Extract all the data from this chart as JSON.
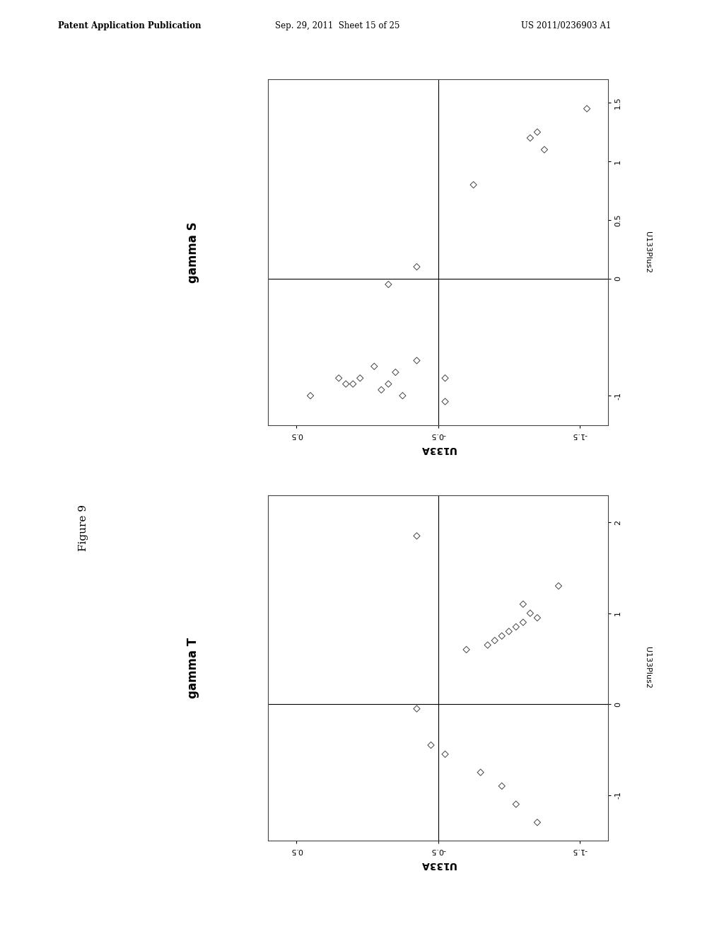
{
  "header_left": "Patent Application Publication",
  "header_mid": "Sep. 29, 2011  Sheet 15 of 25",
  "header_right": "US 2011/0236903 A1",
  "figure_label": "Figure 9",
  "plot1_title": "gamma S",
  "plot1_xlabel": "U133A",
  "plot1_ylabel": "U133Plus2",
  "plot1_xlim": [
    -1.7,
    0.7
  ],
  "plot1_ylim": [
    -1.25,
    1.7
  ],
  "plot1_xdivider": -0.5,
  "plot1_ydivider": 0.0,
  "plot1_xticks": [
    -1.5,
    -0.5,
    0.5
  ],
  "plot1_yticks": [
    -1.0,
    0.0,
    0.5,
    1.0,
    1.5
  ],
  "plot1_scatter_x": [
    -1.55,
    -1.2,
    -1.15,
    -1.25,
    -0.75,
    -0.35,
    -0.15,
    -0.55,
    -0.35,
    -0.2,
    -0.05,
    -0.15,
    0.05,
    0.15,
    -0.25,
    -0.1,
    0.1,
    0.2,
    -0.55,
    0.4
  ],
  "plot1_scatter_y": [
    1.45,
    1.25,
    1.2,
    1.1,
    0.8,
    0.1,
    -0.05,
    -0.85,
    -0.7,
    -0.8,
    -0.75,
    -0.9,
    -0.85,
    -0.9,
    -1.0,
    -0.95,
    -0.9,
    -0.85,
    -1.05,
    -1.0
  ],
  "plot2_title": "gamma T",
  "plot2_xlabel": "U133A",
  "plot2_ylabel": "U133Plus2",
  "plot2_xlim": [
    -1.7,
    0.7
  ],
  "plot2_ylim": [
    -1.5,
    2.3
  ],
  "plot2_xdivider": -0.5,
  "plot2_ydivider": 0.0,
  "plot2_xticks": [
    -1.5,
    -0.5,
    0.5
  ],
  "plot2_yticks": [
    -1.0,
    0.0,
    1.0,
    2.0
  ],
  "plot2_scatter_x": [
    -0.35,
    -1.35,
    -1.1,
    -1.15,
    -1.2,
    -1.1,
    -1.05,
    -1.0,
    -0.95,
    -0.9,
    -0.85,
    -0.7,
    -0.35,
    -0.45,
    -0.55,
    -0.8,
    -0.95,
    -1.05,
    -1.2
  ],
  "plot2_scatter_y": [
    1.85,
    1.3,
    1.1,
    1.0,
    0.95,
    0.9,
    0.85,
    0.8,
    0.75,
    0.7,
    0.65,
    0.6,
    -0.05,
    -0.45,
    -0.55,
    -0.75,
    -0.9,
    -1.1,
    -1.3
  ],
  "bg_color": "#ffffff",
  "plot_bg_color": "#ffffff",
  "scatter_color": "#444444",
  "scatter_size": 22,
  "divider_color": "#000000",
  "box_color": "#444444",
  "spine_lw": 0.8
}
